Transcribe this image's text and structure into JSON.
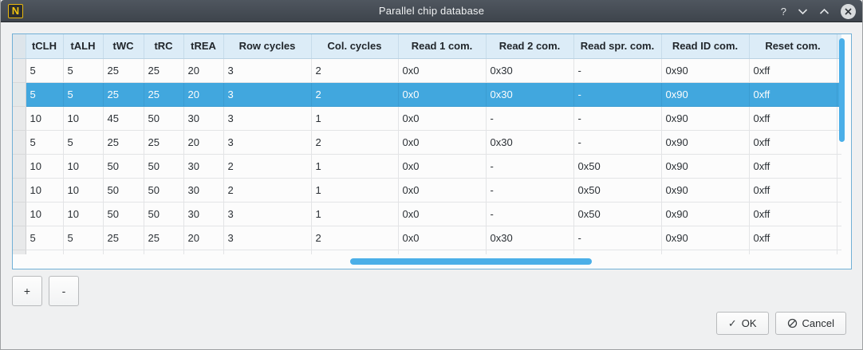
{
  "window": {
    "title": "Parallel chip database",
    "titlebar": {
      "app_icon_letter": "N",
      "help_label": "?"
    }
  },
  "table": {
    "columns": [
      "tCLH",
      "tALH",
      "tWC",
      "tRC",
      "tREA",
      "Row cycles",
      "Col. cycles",
      "Read 1 com.",
      "Read 2 com.",
      "Read spr. com.",
      "Read ID com.",
      "Reset com."
    ],
    "rows": [
      [
        "5",
        "5",
        "25",
        "25",
        "20",
        "3",
        "2",
        "0x0",
        "0x30",
        "-",
        "0x90",
        "0xff"
      ],
      [
        "5",
        "5",
        "25",
        "25",
        "20",
        "3",
        "2",
        "0x0",
        "0x30",
        "-",
        "0x90",
        "0xff"
      ],
      [
        "10",
        "10",
        "45",
        "50",
        "30",
        "3",
        "1",
        "0x0",
        "-",
        "-",
        "0x90",
        "0xff"
      ],
      [
        "5",
        "5",
        "25",
        "25",
        "20",
        "3",
        "2",
        "0x0",
        "0x30",
        "-",
        "0x90",
        "0xff"
      ],
      [
        "10",
        "10",
        "50",
        "50",
        "30",
        "2",
        "1",
        "0x0",
        "-",
        "0x50",
        "0x90",
        "0xff"
      ],
      [
        "10",
        "10",
        "50",
        "50",
        "30",
        "2",
        "1",
        "0x0",
        "-",
        "0x50",
        "0x90",
        "0xff"
      ],
      [
        "10",
        "10",
        "50",
        "50",
        "30",
        "3",
        "1",
        "0x0",
        "-",
        "0x50",
        "0x90",
        "0xff"
      ],
      [
        "5",
        "5",
        "25",
        "25",
        "20",
        "3",
        "2",
        "0x0",
        "0x30",
        "-",
        "0x90",
        "0xff"
      ]
    ],
    "selected_row_index": 1
  },
  "row_buttons": {
    "add_label": "+",
    "remove_label": "-"
  },
  "dialog_buttons": {
    "ok_label": "OK",
    "cancel_label": "Cancel",
    "ok_icon": "✓"
  },
  "colors": {
    "accent": "#3daee9",
    "selection_blue": "#41a7de",
    "header_bg": "#dcecf7",
    "titlebar_bg": "#464d55",
    "app_icon_yellow": "#f2c511"
  }
}
